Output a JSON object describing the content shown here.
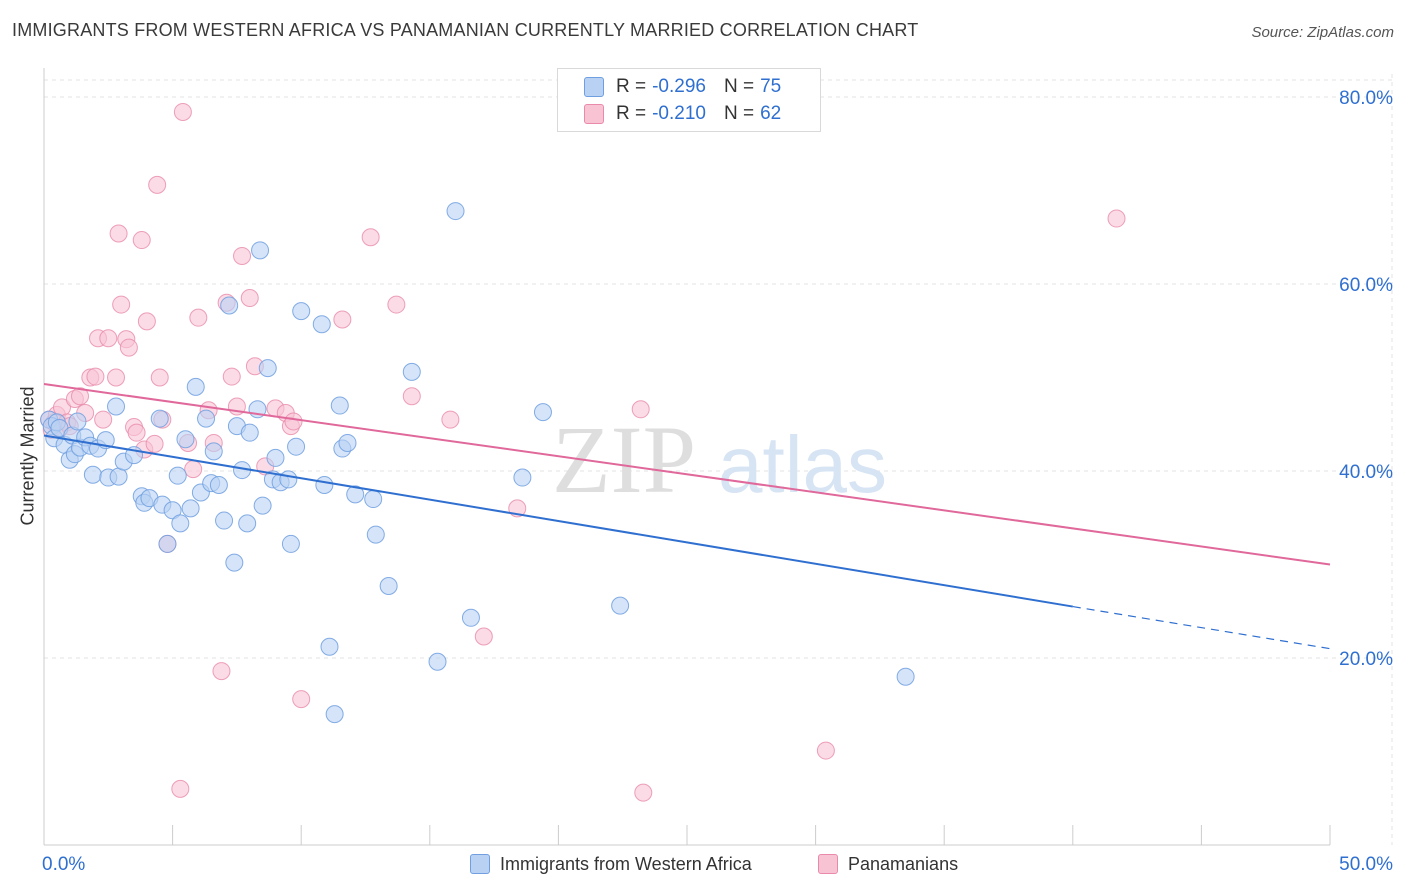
{
  "header": {
    "title": "IMMIGRANTS FROM WESTERN AFRICA VS PANAMANIAN CURRENTLY MARRIED CORRELATION CHART",
    "source": "Source: ZipAtlas.com"
  },
  "legend_top": {
    "rows": [
      {
        "r_label": "R =",
        "r_value": "-0.296",
        "n_label": "N =",
        "n_value": "75"
      },
      {
        "r_label": "R =",
        "r_value": "-0.210",
        "n_label": "N =",
        "n_value": "62"
      }
    ]
  },
  "watermark": {
    "zip": "ZIP",
    "atlas": "atlas"
  },
  "colors": {
    "blue_fill": "#b9d2f4",
    "blue_stroke": "#6f9fe0",
    "blue_line": "#2f6fd0",
    "pink_fill": "#f8c3d3",
    "pink_stroke": "#e98aaa",
    "pink_line": "#e0689a",
    "axis_label": "#2f6fd0",
    "grid": "#e3e3e3"
  },
  "chart_data": {
    "type": "scatter",
    "title": "IMMIGRANTS FROM WESTERN AFRICA VS PANAMANIAN CURRENTLY MARRIED CORRELATION CHART",
    "xlabel": "",
    "ylabel": "Currently Married",
    "xlim": [
      0,
      50
    ],
    "ylim": [
      0,
      80
    ],
    "x_tick_labels": [
      "0.0%",
      "50.0%"
    ],
    "y_ticks": [
      20,
      40,
      60,
      80
    ],
    "y_tick_labels": [
      "20.0%",
      "40.0%",
      "60.0%",
      "80.0%"
    ],
    "grid": true,
    "legend_position": "bottom",
    "series": [
      {
        "name": "Immigrants from Western Africa",
        "r": -0.296,
        "n": 75,
        "trend": {
          "x0": 0,
          "y0": 43.8,
          "x1": 40,
          "y1": 25.5,
          "dashed_to_x": 50,
          "dashed_to_y": 21.0
        },
        "points": [
          [
            0.2,
            45.5
          ],
          [
            0.3,
            44.8
          ],
          [
            0.4,
            43.5
          ],
          [
            0.5,
            45.2
          ],
          [
            0.6,
            44.6
          ],
          [
            0.8,
            42.8
          ],
          [
            1.0,
            41.2
          ],
          [
            1.1,
            43.8
          ],
          [
            1.2,
            41.8
          ],
          [
            1.4,
            42.5
          ],
          [
            1.6,
            43.6
          ],
          [
            1.8,
            42.7
          ],
          [
            1.9,
            39.6
          ],
          [
            2.1,
            42.4
          ],
          [
            2.4,
            43.3
          ],
          [
            2.5,
            39.3
          ],
          [
            2.8,
            46.9
          ],
          [
            2.9,
            39.4
          ],
          [
            3.1,
            41.0
          ],
          [
            3.5,
            41.7
          ],
          [
            3.8,
            37.3
          ],
          [
            3.9,
            36.6
          ],
          [
            4.1,
            37.1
          ],
          [
            4.5,
            45.6
          ],
          [
            4.6,
            36.4
          ],
          [
            4.8,
            32.2
          ],
          [
            5.0,
            35.8
          ],
          [
            5.2,
            39.5
          ],
          [
            5.3,
            34.4
          ],
          [
            5.5,
            43.4
          ],
          [
            5.7,
            36.0
          ],
          [
            5.9,
            49.0
          ],
          [
            6.1,
            37.7
          ],
          [
            6.3,
            45.6
          ],
          [
            6.5,
            38.7
          ],
          [
            6.6,
            42.1
          ],
          [
            6.8,
            38.5
          ],
          [
            7.0,
            34.7
          ],
          [
            7.2,
            57.7
          ],
          [
            7.4,
            30.2
          ],
          [
            7.5,
            44.8
          ],
          [
            7.7,
            40.1
          ],
          [
            7.9,
            34.4
          ],
          [
            8.0,
            44.1
          ],
          [
            8.3,
            46.6
          ],
          [
            8.4,
            63.6
          ],
          [
            8.5,
            36.3
          ],
          [
            8.7,
            51.0
          ],
          [
            8.9,
            39.1
          ],
          [
            9.0,
            41.4
          ],
          [
            9.2,
            38.8
          ],
          [
            9.5,
            39.1
          ],
          [
            9.6,
            32.2
          ],
          [
            9.8,
            42.6
          ],
          [
            10.0,
            57.1
          ],
          [
            10.8,
            55.7
          ],
          [
            10.9,
            38.5
          ],
          [
            11.1,
            21.2
          ],
          [
            11.3,
            14.0
          ],
          [
            11.5,
            47.0
          ],
          [
            11.6,
            42.4
          ],
          [
            11.8,
            43.0
          ],
          [
            12.1,
            37.5
          ],
          [
            12.8,
            37.0
          ],
          [
            12.9,
            33.2
          ],
          [
            13.4,
            27.7
          ],
          [
            14.3,
            50.6
          ],
          [
            15.3,
            19.6
          ],
          [
            16.0,
            67.8
          ],
          [
            16.6,
            24.3
          ],
          [
            18.6,
            39.3
          ],
          [
            19.4,
            46.3
          ],
          [
            22.4,
            25.6
          ],
          [
            33.5,
            18.0
          ],
          [
            1.3,
            45.3
          ]
        ]
      },
      {
        "name": "Panamanians",
        "r": -0.21,
        "n": 62,
        "trend": {
          "x0": 0,
          "y0": 49.3,
          "x1": 50,
          "y1": 30.0
        },
        "points": [
          [
            0.2,
            45.5
          ],
          [
            0.3,
            44.4
          ],
          [
            0.4,
            45.2
          ],
          [
            0.5,
            46.0
          ],
          [
            0.6,
            44.5
          ],
          [
            0.7,
            46.8
          ],
          [
            0.9,
            45.2
          ],
          [
            1.0,
            44.8
          ],
          [
            1.2,
            47.7
          ],
          [
            1.4,
            48.0
          ],
          [
            1.6,
            46.2
          ],
          [
            1.8,
            50.0
          ],
          [
            2.0,
            50.1
          ],
          [
            2.1,
            54.2
          ],
          [
            2.3,
            45.5
          ],
          [
            2.5,
            54.2
          ],
          [
            2.8,
            50.0
          ],
          [
            2.9,
            65.4
          ],
          [
            3.0,
            57.8
          ],
          [
            3.2,
            54.1
          ],
          [
            3.3,
            53.2
          ],
          [
            3.5,
            44.7
          ],
          [
            3.6,
            44.1
          ],
          [
            3.8,
            64.7
          ],
          [
            3.9,
            42.3
          ],
          [
            4.0,
            56.0
          ],
          [
            4.3,
            42.9
          ],
          [
            4.5,
            50.0
          ],
          [
            4.4,
            70.6
          ],
          [
            4.6,
            45.5
          ],
          [
            4.8,
            32.2
          ],
          [
            5.3,
            6.0
          ],
          [
            5.4,
            78.4
          ],
          [
            5.6,
            43.0
          ],
          [
            5.8,
            40.2
          ],
          [
            6.0,
            56.4
          ],
          [
            6.4,
            46.5
          ],
          [
            6.6,
            43.0
          ],
          [
            6.9,
            18.6
          ],
          [
            7.1,
            58.0
          ],
          [
            7.3,
            50.1
          ],
          [
            7.5,
            46.9
          ],
          [
            7.7,
            63.0
          ],
          [
            8.0,
            58.5
          ],
          [
            8.2,
            51.2
          ],
          [
            8.6,
            40.5
          ],
          [
            9.0,
            46.7
          ],
          [
            9.4,
            46.2
          ],
          [
            9.6,
            44.8
          ],
          [
            9.7,
            45.3
          ],
          [
            10.0,
            15.6
          ],
          [
            11.6,
            56.2
          ],
          [
            12.7,
            65.0
          ],
          [
            13.7,
            57.8
          ],
          [
            14.3,
            48.0
          ],
          [
            15.8,
            45.5
          ],
          [
            17.1,
            22.3
          ],
          [
            18.4,
            36.0
          ],
          [
            23.2,
            46.6
          ],
          [
            23.3,
            5.6
          ],
          [
            30.4,
            10.1
          ],
          [
            41.7,
            67.0
          ]
        ]
      }
    ]
  }
}
